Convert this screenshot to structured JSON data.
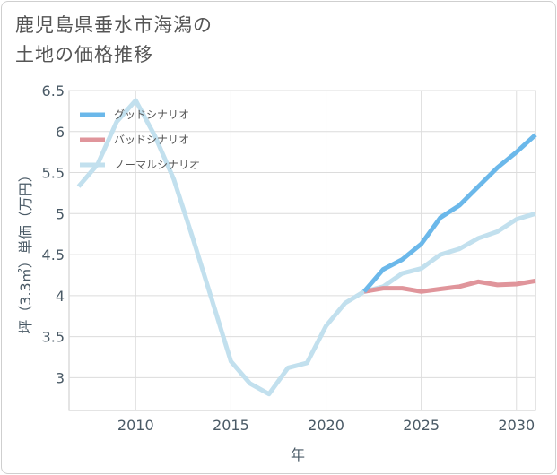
{
  "title_lines": [
    "鹿児島県垂水市海潟の",
    "土地の価格推移"
  ],
  "chart_data": {
    "type": "line",
    "title": "鹿児島県垂水市海潟の土地の価格推移",
    "xlabel": "年",
    "ylabel": "坪（3.3㎡）単価（万円）",
    "xlim": [
      2006.5,
      2031
    ],
    "ylim": [
      2.6,
      6.5
    ],
    "xticks": [
      2010,
      2015,
      2020,
      2025,
      2030
    ],
    "yticks": [
      3,
      3.5,
      4,
      4.5,
      5,
      5.5,
      6,
      6.5
    ],
    "ytick_labels": [
      "3",
      "3.5",
      "4",
      "4.5",
      "5",
      "5.5",
      "6",
      "6.5"
    ],
    "grid": true,
    "legend_position": "top-left",
    "series": [
      {
        "name": "グッドシナリオ",
        "color": "#6bb8ea",
        "x": [
          2022,
          2023,
          2024,
          2025,
          2026,
          2027,
          2028,
          2029,
          2030,
          2031
        ],
        "y": [
          4.05,
          4.32,
          4.44,
          4.63,
          4.95,
          5.1,
          5.33,
          5.56,
          5.75,
          5.96
        ]
      },
      {
        "name": "バッドシナリオ",
        "color": "#e0959b",
        "x": [
          2022,
          2023,
          2024,
          2025,
          2026,
          2027,
          2028,
          2029,
          2030,
          2031
        ],
        "y": [
          4.05,
          4.09,
          4.09,
          4.05,
          4.08,
          4.11,
          4.17,
          4.13,
          4.14,
          4.18
        ]
      },
      {
        "name": "ノーマルシナリオ",
        "color": "#c2e0ee",
        "x": [
          2007,
          2008,
          2009,
          2010,
          2011,
          2012,
          2013,
          2014,
          2015,
          2016,
          2017,
          2018,
          2019,
          2020,
          2021,
          2022,
          2023,
          2024,
          2025,
          2026,
          2027,
          2028,
          2029,
          2030,
          2031
        ],
        "y": [
          5.33,
          5.6,
          6.12,
          6.38,
          5.95,
          5.42,
          4.7,
          3.95,
          3.2,
          2.93,
          2.8,
          3.12,
          3.18,
          3.63,
          3.91,
          4.05,
          4.11,
          4.27,
          4.33,
          4.5,
          4.57,
          4.7,
          4.78,
          4.93,
          5.0
        ]
      }
    ]
  }
}
